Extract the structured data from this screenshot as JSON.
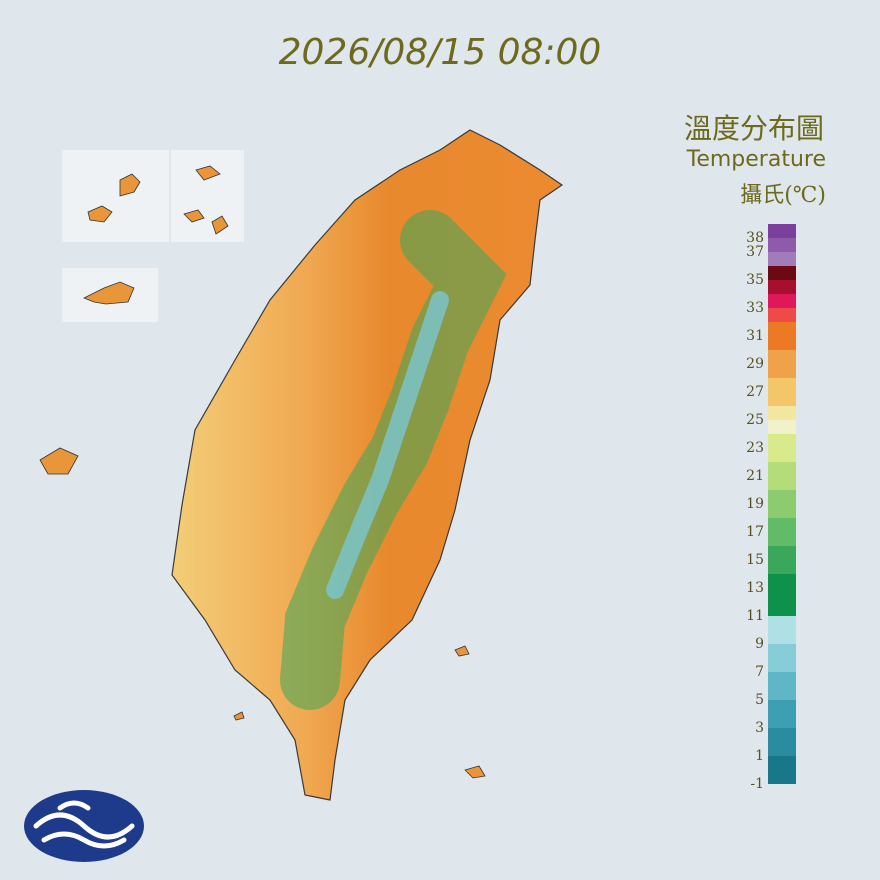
{
  "header": {
    "title": "2026/08/15 08:00"
  },
  "legend": {
    "title": "溫度分布圖",
    "subtitle": "Temperature",
    "unit": "攝氏(℃)",
    "range": [
      -1,
      39
    ],
    "ticks": [
      38,
      37,
      35,
      33,
      31,
      29,
      27,
      25,
      23,
      21,
      19,
      17,
      15,
      13,
      11,
      9,
      7,
      5,
      3,
      1,
      -1
    ],
    "bands": [
      {
        "from": 38,
        "to": 39,
        "color": "#7d3f9e"
      },
      {
        "from": 37,
        "to": 38,
        "color": "#8e5aaa"
      },
      {
        "from": 36,
        "to": 37,
        "color": "#a27bbb"
      },
      {
        "from": 35,
        "to": 36,
        "color": "#6c0a14"
      },
      {
        "from": 34,
        "to": 35,
        "color": "#a80e2e"
      },
      {
        "from": 33,
        "to": 34,
        "color": "#e0185a"
      },
      {
        "from": 32,
        "to": 33,
        "color": "#ee4a48"
      },
      {
        "from": 30,
        "to": 32,
        "color": "#ec7a24"
      },
      {
        "from": 28,
        "to": 30,
        "color": "#f0a24a"
      },
      {
        "from": 26,
        "to": 28,
        "color": "#f3c66a"
      },
      {
        "from": 25,
        "to": 26,
        "color": "#f2e6a0"
      },
      {
        "from": 24,
        "to": 25,
        "color": "#f1f2cc"
      },
      {
        "from": 22,
        "to": 24,
        "color": "#d8ea8c"
      },
      {
        "from": 20,
        "to": 22,
        "color": "#b4dc78"
      },
      {
        "from": 18,
        "to": 20,
        "color": "#8ccc6e"
      },
      {
        "from": 16,
        "to": 18,
        "color": "#62bb66"
      },
      {
        "from": 14,
        "to": 16,
        "color": "#3aa85a"
      },
      {
        "from": 11,
        "to": 14,
        "color": "#0e914a"
      },
      {
        "from": 9,
        "to": 11,
        "color": "#aee0e6"
      },
      {
        "from": 7,
        "to": 9,
        "color": "#86cdd8"
      },
      {
        "from": 5,
        "to": 7,
        "color": "#5eb6c6"
      },
      {
        "from": 3,
        "to": 5,
        "color": "#3f9fb2"
      },
      {
        "from": 1,
        "to": 3,
        "color": "#2a8c9e"
      },
      {
        "from": -1,
        "to": 1,
        "color": "#18788a"
      }
    ]
  }
}
